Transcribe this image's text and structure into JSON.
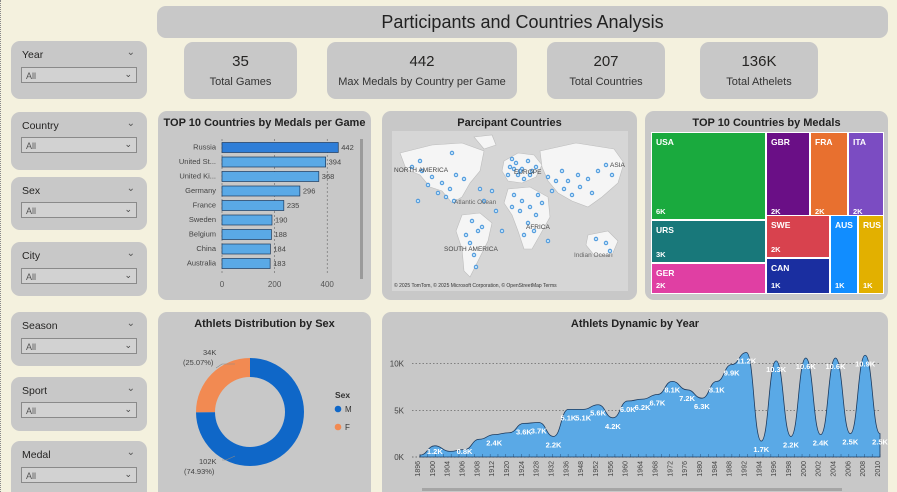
{
  "header": {
    "title": "Participants and Countries Analysis"
  },
  "kpis": [
    {
      "value": "35",
      "label": "Total Games"
    },
    {
      "value": "442",
      "label": "Max Medals by Country per Game"
    },
    {
      "value": "207",
      "label": "Total Countries"
    },
    {
      "value": "136K",
      "label": "Total Athelets"
    }
  ],
  "slicers": [
    {
      "label": "Year",
      "value": "All"
    },
    {
      "label": "Country",
      "value": "All"
    },
    {
      "label": "Sex",
      "value": "All"
    },
    {
      "label": "City",
      "value": "All"
    },
    {
      "label": "Season",
      "value": "All"
    },
    {
      "label": "Sport",
      "value": "All"
    },
    {
      "label": "Medal",
      "value": "All"
    }
  ],
  "top10_medals_per_game": {
    "title": "TOP 10 Countries by Medals per Game",
    "bar_color": "#5aa9e6",
    "highlight_color": "#2f7ed8"
  },
  "map": {
    "title": "Parcipant Countries",
    "labels": [
      "NORTH AMERICA",
      "EUROPE",
      "ASIA",
      "Atlantic Ocean",
      "AFRICA",
      "SOUTH AMERICA",
      "Indian Ocean"
    ],
    "attribution": "© 2025 TomTom, © 2025 Microsoft Corporation, © OpenStreetMap  Terms"
  },
  "treemap": {
    "title": "TOP 10 Countries by Medals",
    "cells": [
      {
        "name": "USA",
        "value": "6K",
        "color": "#1aaa3e"
      },
      {
        "name": "GBR",
        "value": "2K",
        "color": "#6a0f86"
      },
      {
        "name": "FRA",
        "value": "2K",
        "color": "#e8702f"
      },
      {
        "name": "ITA",
        "value": "2K",
        "color": "#7b4cc2"
      },
      {
        "name": "URS",
        "value": "3K",
        "color": "#18787a"
      },
      {
        "name": "SWE",
        "value": "2K",
        "color": "#d8424e"
      },
      {
        "name": "AUS",
        "value": "1K",
        "color": "#118dff"
      },
      {
        "name": "RUS",
        "value": "1K",
        "color": "#e2b000"
      },
      {
        "name": "GER",
        "value": "2K",
        "color": "#e03fa3"
      },
      {
        "name": "CAN",
        "value": "1K",
        "color": "#1a2ea0"
      }
    ]
  },
  "donut": {
    "title": "Athlets Distribution by Sex",
    "legend_title": "Sex",
    "m_label_1": "102K",
    "m_label_2": "(74.93%)",
    "f_label_1": "34K",
    "f_label_2": "(25.07%)",
    "colors": {
      "M": "#0f67c8",
      "F": "#f28a52"
    }
  },
  "dynamic": {
    "title": "Athlets Dynamic by Year",
    "color": "#5aa9e6"
  },
  "chart_data": [
    {
      "type": "bar",
      "orientation": "horizontal",
      "title": "TOP 10 Countries by Medals per Game",
      "categories": [
        "Russia",
        "United St...",
        "United Ki...",
        "Germany",
        "France",
        "Sweden",
        "Belgium",
        "China",
        "Australia"
      ],
      "values": [
        442,
        394,
        368,
        296,
        235,
        190,
        188,
        184,
        183
      ],
      "xticks": [
        "0",
        "200",
        "400"
      ],
      "xlim": [
        0,
        460
      ]
    },
    {
      "type": "pie",
      "title": "Athlets Distribution by Sex",
      "slices": [
        {
          "name": "M",
          "value": 74.93
        },
        {
          "name": "F",
          "value": 25.07
        }
      ]
    },
    {
      "type": "area",
      "title": "Athlets Dynamic by Year",
      "yticks": [
        "0K",
        "5K",
        "10K"
      ],
      "ylim": [
        0,
        12000
      ],
      "x": [
        "1896",
        "1900",
        "1904",
        "1906",
        "1908",
        "1912",
        "1920",
        "1924",
        "1928",
        "1932",
        "1936",
        "1948",
        "1952",
        "1956",
        "1960",
        "1964",
        "1968",
        "1972",
        "1976",
        "1980",
        "1984",
        "1988",
        "1992",
        "1994",
        "1996",
        "1998",
        "2000",
        "2002",
        "2004",
        "2006",
        "2008",
        "2010"
      ],
      "y": [
        200,
        1200,
        600,
        800,
        1900,
        2400,
        2600,
        3600,
        3700,
        2200,
        5100,
        5100,
        5600,
        4200,
        6000,
        6200,
        6700,
        8100,
        7200,
        6300,
        8100,
        9900,
        11200,
        1700,
        10300,
        2200,
        10600,
        2400,
        10600,
        2500,
        10900,
        2500
      ],
      "data_labels": [
        "",
        "1.2K",
        "",
        "0.8K",
        "",
        "2.4K",
        "",
        "3.6K",
        "3.7K",
        "2.2K",
        "5.1K",
        "5.1K",
        "5.6K",
        "4.2K",
        "6.0K",
        "6.2K",
        "6.7K",
        "8.1K",
        "7.2K",
        "6.3K",
        "8.1K",
        "9.9K",
        "11.2K",
        "1.7K",
        "10.3K",
        "2.2K",
        "10.6K",
        "2.4K",
        "10.6K",
        "2.5K",
        "10.9K",
        "2.5K"
      ]
    }
  ]
}
